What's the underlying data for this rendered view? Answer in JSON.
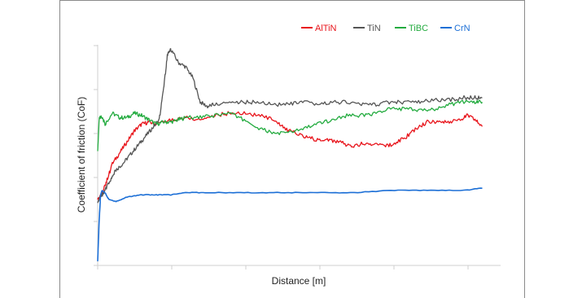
{
  "chart_data": {
    "type": "line",
    "xlabel": "Distance [m]",
    "ylabel": "Coefficient of friction (CoF)",
    "xlim": [
      0,
      550
    ],
    "ylim": [
      0,
      1
    ],
    "grid": false,
    "legend_position": "top-right",
    "series": [
      {
        "name": "AlTiN",
        "color": "#e8141b",
        "points": [
          [
            0,
            0.3
          ],
          [
            6,
            0.33
          ],
          [
            12,
            0.38
          ],
          [
            20,
            0.46
          ],
          [
            30,
            0.51
          ],
          [
            40,
            0.56
          ],
          [
            50,
            0.61
          ],
          [
            60,
            0.64
          ],
          [
            70,
            0.65
          ],
          [
            80,
            0.64
          ],
          [
            100,
            0.66
          ],
          [
            120,
            0.67
          ],
          [
            140,
            0.66
          ],
          [
            160,
            0.68
          ],
          [
            180,
            0.69
          ],
          [
            200,
            0.69
          ],
          [
            220,
            0.68
          ],
          [
            240,
            0.66
          ],
          [
            255,
            0.62
          ],
          [
            270,
            0.6
          ],
          [
            285,
            0.58
          ],
          [
            300,
            0.57
          ],
          [
            315,
            0.57
          ],
          [
            330,
            0.56
          ],
          [
            345,
            0.54
          ],
          [
            360,
            0.55
          ],
          [
            375,
            0.55
          ],
          [
            390,
            0.54
          ],
          [
            405,
            0.55
          ],
          [
            420,
            0.58
          ],
          [
            435,
            0.62
          ],
          [
            450,
            0.65
          ],
          [
            465,
            0.65
          ],
          [
            480,
            0.65
          ],
          [
            495,
            0.66
          ],
          [
            505,
            0.68
          ],
          [
            515,
            0.66
          ],
          [
            525,
            0.63
          ]
        ]
      },
      {
        "name": "TiN",
        "color": "#555555",
        "points": [
          [
            0,
            0.29
          ],
          [
            8,
            0.33
          ],
          [
            16,
            0.38
          ],
          [
            24,
            0.43
          ],
          [
            34,
            0.46
          ],
          [
            44,
            0.5
          ],
          [
            54,
            0.54
          ],
          [
            64,
            0.58
          ],
          [
            74,
            0.62
          ],
          [
            84,
            0.66
          ],
          [
            90,
            0.8
          ],
          [
            95,
            0.95
          ],
          [
            100,
            0.98
          ],
          [
            110,
            0.92
          ],
          [
            120,
            0.9
          ],
          [
            130,
            0.85
          ],
          [
            140,
            0.74
          ],
          [
            150,
            0.72
          ],
          [
            160,
            0.73
          ],
          [
            180,
            0.74
          ],
          [
            200,
            0.74
          ],
          [
            220,
            0.74
          ],
          [
            240,
            0.73
          ],
          [
            260,
            0.73
          ],
          [
            280,
            0.74
          ],
          [
            300,
            0.73
          ],
          [
            320,
            0.74
          ],
          [
            340,
            0.74
          ],
          [
            360,
            0.73
          ],
          [
            380,
            0.73
          ],
          [
            400,
            0.74
          ],
          [
            420,
            0.74
          ],
          [
            440,
            0.74
          ],
          [
            460,
            0.75
          ],
          [
            480,
            0.75
          ],
          [
            500,
            0.76
          ],
          [
            515,
            0.76
          ],
          [
            525,
            0.76
          ]
        ]
      },
      {
        "name": "TiBC",
        "color": "#23ab3f",
        "points": [
          [
            0,
            0.52
          ],
          [
            2,
            0.66
          ],
          [
            5,
            0.68
          ],
          [
            10,
            0.64
          ],
          [
            20,
            0.69
          ],
          [
            30,
            0.67
          ],
          [
            40,
            0.67
          ],
          [
            50,
            0.69
          ],
          [
            60,
            0.68
          ],
          [
            70,
            0.66
          ],
          [
            80,
            0.64
          ],
          [
            90,
            0.65
          ],
          [
            100,
            0.65
          ],
          [
            110,
            0.66
          ],
          [
            120,
            0.67
          ],
          [
            140,
            0.67
          ],
          [
            160,
            0.68
          ],
          [
            180,
            0.69
          ],
          [
            200,
            0.66
          ],
          [
            220,
            0.62
          ],
          [
            240,
            0.6
          ],
          [
            260,
            0.6
          ],
          [
            280,
            0.62
          ],
          [
            300,
            0.64
          ],
          [
            320,
            0.66
          ],
          [
            340,
            0.68
          ],
          [
            360,
            0.68
          ],
          [
            380,
            0.69
          ],
          [
            400,
            0.71
          ],
          [
            420,
            0.71
          ],
          [
            440,
            0.7
          ],
          [
            460,
            0.71
          ],
          [
            480,
            0.73
          ],
          [
            500,
            0.74
          ],
          [
            515,
            0.74
          ],
          [
            525,
            0.74
          ]
        ]
      },
      {
        "name": "CrN",
        "color": "#1c6fd6",
        "points": [
          [
            0,
            0.02
          ],
          [
            2,
            0.2
          ],
          [
            4,
            0.32
          ],
          [
            6,
            0.34
          ],
          [
            10,
            0.33
          ],
          [
            15,
            0.3
          ],
          [
            25,
            0.29
          ],
          [
            40,
            0.31
          ],
          [
            60,
            0.32
          ],
          [
            80,
            0.32
          ],
          [
            100,
            0.32
          ],
          [
            120,
            0.33
          ],
          [
            150,
            0.33
          ],
          [
            200,
            0.33
          ],
          [
            250,
            0.33
          ],
          [
            300,
            0.33
          ],
          [
            350,
            0.33
          ],
          [
            400,
            0.34
          ],
          [
            450,
            0.34
          ],
          [
            500,
            0.34
          ],
          [
            525,
            0.35
          ]
        ]
      }
    ]
  }
}
